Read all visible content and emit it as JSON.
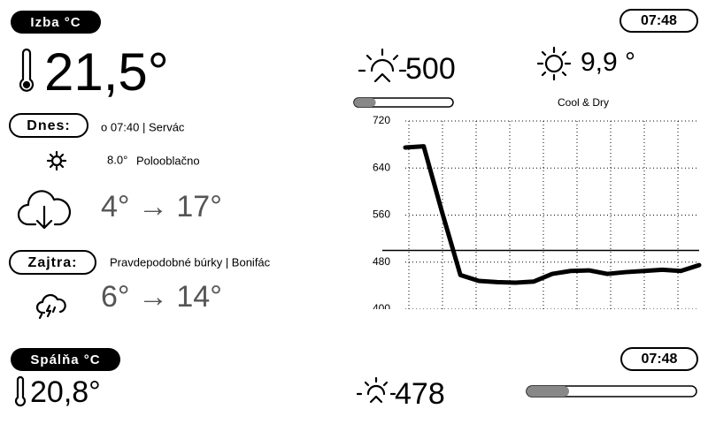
{
  "indoor": {
    "label": "Izba °C",
    "time": "07:48",
    "temperature": "21,5°"
  },
  "today": {
    "label": "Dnes:",
    "info": "o 07:40 | Servác",
    "temperature": "8.0°",
    "condition": "Polooblačno",
    "range": "4° → 17°"
  },
  "tomorrow": {
    "label": "Zajtra:",
    "info": "Pravdepodobné búrky | Bonifác",
    "range": "6° → 14°"
  },
  "light": {
    "value": "500",
    "fill": 0.22
  },
  "outdoor": {
    "temperature": "9,9 °",
    "comfort": "Cool & Dry"
  },
  "chart": {
    "type": "line",
    "values": [
      675,
      677,
      565,
      458,
      448,
      446,
      445,
      447,
      460,
      465,
      466,
      460,
      463,
      465,
      467,
      465,
      475
    ],
    "ylim": [
      400,
      720
    ],
    "yticks": [
      400,
      480,
      560,
      640,
      720
    ],
    "threshold": 500,
    "grid": true
  },
  "bedroom": {
    "label": "Spálňa °C",
    "time": "07:48",
    "temperature": "20,8°",
    "light": "478",
    "fill": 0.25
  }
}
